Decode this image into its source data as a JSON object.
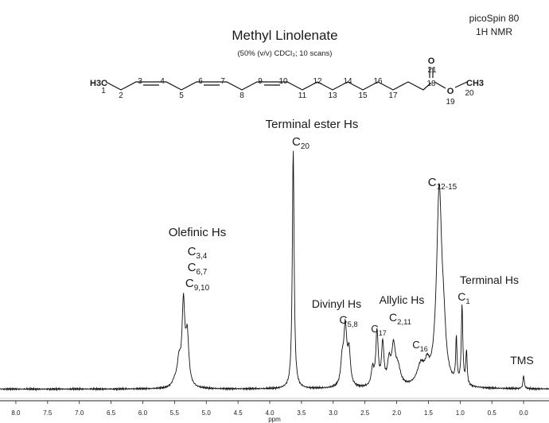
{
  "chart_data": {
    "type": "line",
    "title": "Methyl Linolenate",
    "subtitle": "(50% (v/v) CDCl₃; 10 scans)",
    "instrument": {
      "line1": "picoSpin 80",
      "line2": "1H NMR"
    },
    "xlabel": "ppm",
    "xlim": [
      8.25,
      -0.4
    ],
    "x_reversed": true,
    "ylim": [
      0,
      100
    ],
    "grid": false,
    "x_ticks": [
      8.0,
      7.5,
      7.0,
      6.5,
      6.0,
      5.5,
      5.0,
      4.5,
      4.0,
      3.5,
      3.0,
      2.5,
      2.0,
      1.5,
      1.0,
      0.5,
      0.0
    ],
    "x_tick_labels": [
      "8.0",
      "7.5",
      "7.0",
      "6.5",
      "6.0",
      "5.5",
      "5.0",
      "4.5",
      "4.0",
      "3.5",
      "3.0",
      "2.5",
      "2.0",
      "1.5",
      "1.0",
      "0.5",
      "0.0"
    ],
    "baseline": 1.5,
    "peaks": [
      {
        "center": 5.36,
        "height": 32.5,
        "width": 0.026
      },
      {
        "center": 5.3,
        "height": 20,
        "width": 0.03
      },
      {
        "center": 5.43,
        "height": 10,
        "width": 0.035
      },
      {
        "center": 5.5,
        "height": 2,
        "width": 0.04
      },
      {
        "center": 3.63,
        "height": 97,
        "width": 0.017
      },
      {
        "center": 2.81,
        "height": 24,
        "width": 0.03
      },
      {
        "center": 2.75,
        "height": 13,
        "width": 0.025
      },
      {
        "center": 2.86,
        "height": 9,
        "width": 0.025
      },
      {
        "center": 2.31,
        "height": 22,
        "width": 0.022
      },
      {
        "center": 2.38,
        "height": 7,
        "width": 0.025
      },
      {
        "center": 2.22,
        "height": 17,
        "width": 0.022
      },
      {
        "center": 2.12,
        "height": 9,
        "width": 0.03
      },
      {
        "center": 2.05,
        "height": 15,
        "width": 0.035
      },
      {
        "center": 1.98,
        "height": 7,
        "width": 0.05
      },
      {
        "center": 1.62,
        "height": 8,
        "width": 0.07
      },
      {
        "center": 1.52,
        "height": 6,
        "width": 0.04
      },
      {
        "center": 1.33,
        "height": 79,
        "width": 0.05
      },
      {
        "center": 1.26,
        "height": 14,
        "width": 0.04
      },
      {
        "center": 1.06,
        "height": 18,
        "width": 0.012
      },
      {
        "center": 0.97,
        "height": 32,
        "width": 0.014
      },
      {
        "center": 0.9,
        "height": 14,
        "width": 0.012
      },
      {
        "center": 0.0,
        "height": 5.5,
        "width": 0.012
      }
    ],
    "annotations": [
      {
        "label": "Olefinic Hs",
        "subs": [
          {
            "base": "C",
            "sub": "3,4"
          },
          {
            "base": "C",
            "sub": "6,7"
          },
          {
            "base": "C",
            "sub": "9,10"
          }
        ]
      },
      {
        "label": "Terminal ester Hs",
        "subs": [
          {
            "base": "C",
            "sub": "20"
          }
        ]
      },
      {
        "label": "Divinyl Hs",
        "subs": [
          {
            "base": "C",
            "sub": "5,8"
          }
        ]
      },
      {
        "label": "Allylic Hs",
        "subs": [
          {
            "base": "C",
            "sub": "2,11"
          }
        ]
      },
      {
        "label": "",
        "subs": [
          {
            "base": "C",
            "sub": "17"
          }
        ]
      },
      {
        "label": "",
        "subs": [
          {
            "base": "C",
            "sub": "16"
          }
        ]
      },
      {
        "label": "",
        "subs": [
          {
            "base": "C",
            "sub": "12-15"
          }
        ]
      },
      {
        "label": "Terminal Hs",
        "subs": [
          {
            "base": "C",
            "sub": "1"
          }
        ]
      },
      {
        "label": "TMS",
        "subs": []
      }
    ],
    "structure": {
      "groups": {
        "h3c": "H3C",
        "ch3": "CH3",
        "o_ester": "O",
        "o_carbonyl": "O"
      },
      "atom_numbers": [
        "1",
        "2",
        "3",
        "4",
        "5",
        "6",
        "7",
        "8",
        "9",
        "10",
        "11",
        "12",
        "13",
        "14",
        "15",
        "16",
        "17",
        "18",
        "19",
        "20",
        "21"
      ],
      "number_color": "#e8321e"
    }
  }
}
